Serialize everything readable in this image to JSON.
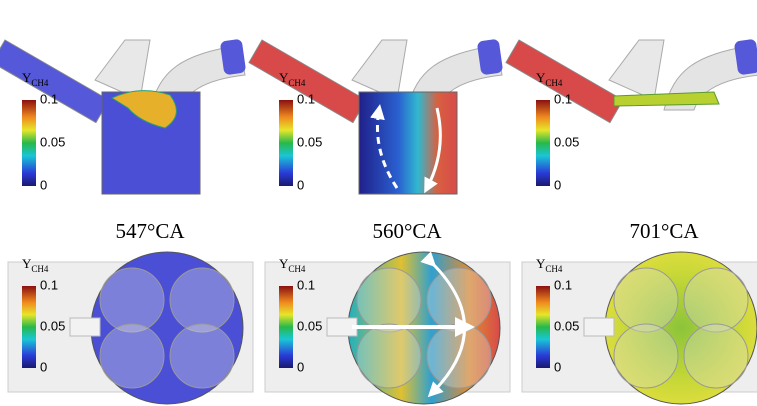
{
  "captions": [
    "547°CA",
    "560°CA",
    "701°CA"
  ],
  "panels": [
    {
      "legend": {
        "symbol": "Y",
        "subscript": "CH4",
        "ticks": [
          "0.1",
          "0.05",
          "0"
        ]
      }
    },
    {
      "legend": {
        "symbol": "Y",
        "subscript": "CH4",
        "ticks": [
          "0.1",
          "0.05",
          "0"
        ]
      }
    },
    {
      "legend": {
        "symbol": "Y",
        "subscript": "CH4",
        "ticks": [
          "0.1",
          "0.05",
          "0"
        ]
      }
    },
    {
      "legend": {
        "symbol": "Y",
        "subscript": "CH4",
        "ticks": [
          "0.1",
          "0.05",
          "0"
        ]
      }
    },
    {
      "legend": {
        "symbol": "Y",
        "subscript": "CH4",
        "ticks": [
          "0.1",
          "0.05",
          "0"
        ]
      }
    },
    {
      "legend": {
        "symbol": "Y",
        "subscript": "CH4",
        "ticks": [
          "0.1",
          "0.05",
          "0"
        ]
      }
    }
  ]
}
